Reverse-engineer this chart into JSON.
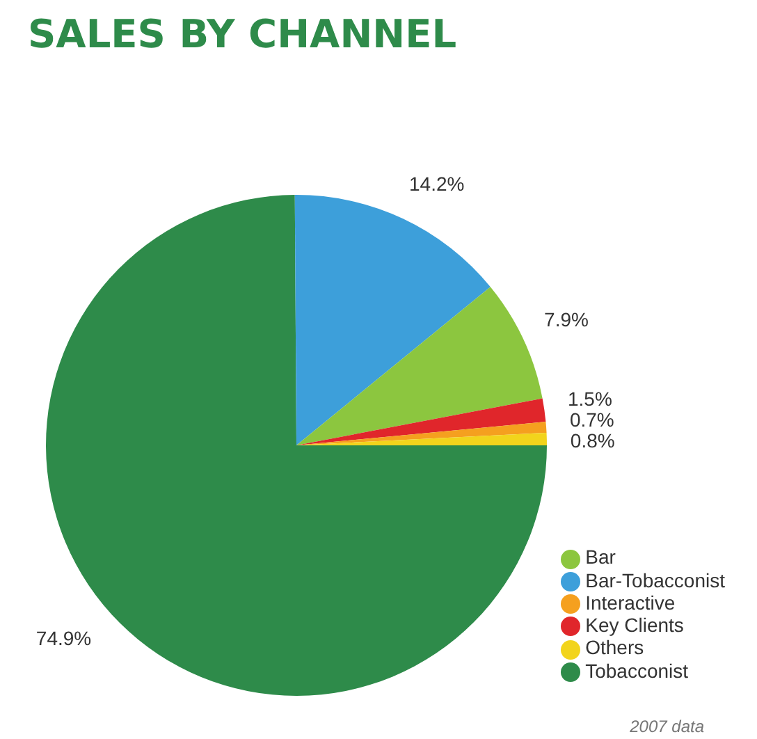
{
  "chart_data": {
    "type": "pie",
    "title": "SALES BY CHANNEL",
    "categories": [
      "Tobacconist",
      "Bar-Tobacconist",
      "Bar",
      "Key Clients",
      "Interactive",
      "Others"
    ],
    "values": [
      74.9,
      14.2,
      7.9,
      1.5,
      0.7,
      0.8
    ],
    "colors": [
      "#2e8b4a",
      "#3d9fda",
      "#8cc63f",
      "#e0262b",
      "#f5a01f",
      "#f2d41c"
    ],
    "value_labels": [
      "74.9%",
      "14.2%",
      "7.9%",
      "1.5%",
      "0.7%",
      "0.8%"
    ],
    "legend": "bottom right",
    "annotations": [
      "2007 data"
    ]
  }
}
